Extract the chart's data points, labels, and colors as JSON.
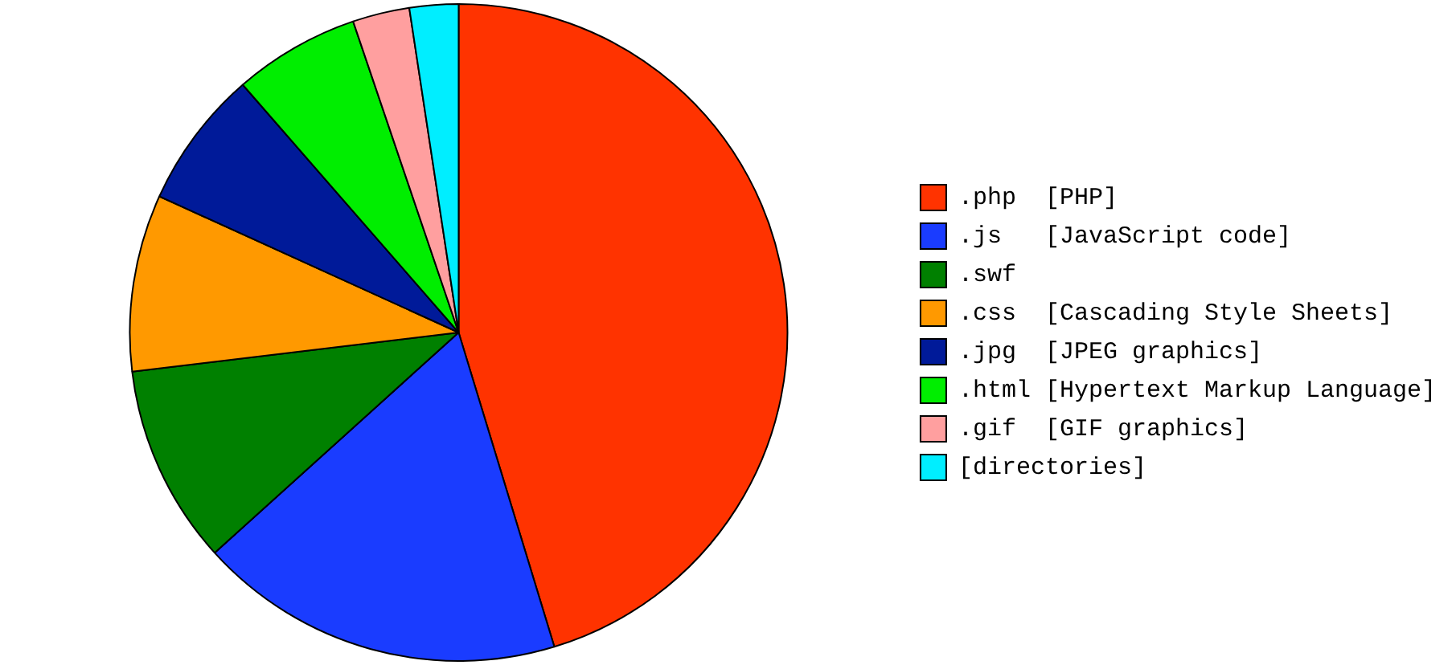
{
  "chart_data": {
    "type": "pie",
    "categories": [
      ".php  [PHP]",
      ".js   [JavaScript code]",
      ".swf",
      ".css  [Cascading Style Sheets]",
      ".jpg  [JPEG graphics]",
      ".html [Hypertext Markup Language]",
      ".gif  [GIF graphics]",
      "[directories]"
    ],
    "values": [
      45.3,
      18,
      9.8,
      8.7,
      6.8,
      6.2,
      2.8,
      2.4
    ],
    "colors": [
      "#ff3300",
      "#1a3cff",
      "#008000",
      "#ff9900",
      "#001a99",
      "#00ee00",
      "#ff9f9f",
      "#00eeff"
    ],
    "legend": "right"
  }
}
